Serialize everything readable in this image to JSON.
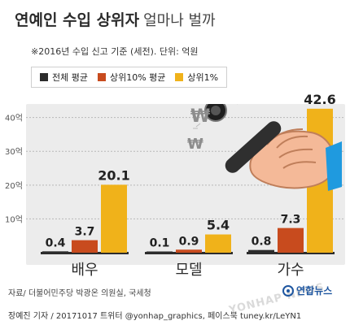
{
  "title": {
    "main": "연예인 수입 상위자",
    "sub": "얼마나 벌까"
  },
  "note": "※2016년 수입 신고 기준 (세전). 단위: 억원",
  "legend": [
    {
      "label": "전체 평균",
      "color": "#2c2c2c"
    },
    {
      "label": "상위10% 평균",
      "color": "#c84b1e"
    },
    {
      "label": "상위1%",
      "color": "#f0b21a"
    }
  ],
  "chart_data": {
    "type": "bar",
    "categories": [
      "배우",
      "모델",
      "가수"
    ],
    "series": [
      {
        "name": "전체 평균",
        "values": [
          0.4,
          0.1,
          0.8
        ],
        "color": "#2c2c2c"
      },
      {
        "name": "상위10% 평균",
        "values": [
          3.7,
          0.9,
          7.3
        ],
        "color": "#c84b1e"
      },
      {
        "name": "상위1%",
        "values": [
          20.1,
          5.4,
          42.6
        ],
        "color": "#f0b21a"
      }
    ],
    "value_labels": [
      [
        "0.4",
        "3.7",
        "20.1"
      ],
      [
        "0.1",
        "0.9",
        "5.4"
      ],
      [
        "0.8",
        "7.3",
        "42.6"
      ]
    ],
    "y_ticks": [
      10,
      20,
      30,
      40
    ],
    "y_tick_labels": [
      "10억",
      "20억",
      "30억",
      "40억"
    ],
    "ylim": [
      0,
      44
    ],
    "grid": true,
    "legend_position": "top-left"
  },
  "footer": {
    "source": "자료/ 더불어민주당 박광온 의원실, 국세청",
    "credit": "장예진 기자 / 20171017 트위터 @yonhap_graphics, 페이스북 tuney.kr/LeYN1",
    "logo": "연합뉴스",
    "watermark": "YONHAP NEWS"
  },
  "illustration": {
    "won_symbol": "₩"
  }
}
